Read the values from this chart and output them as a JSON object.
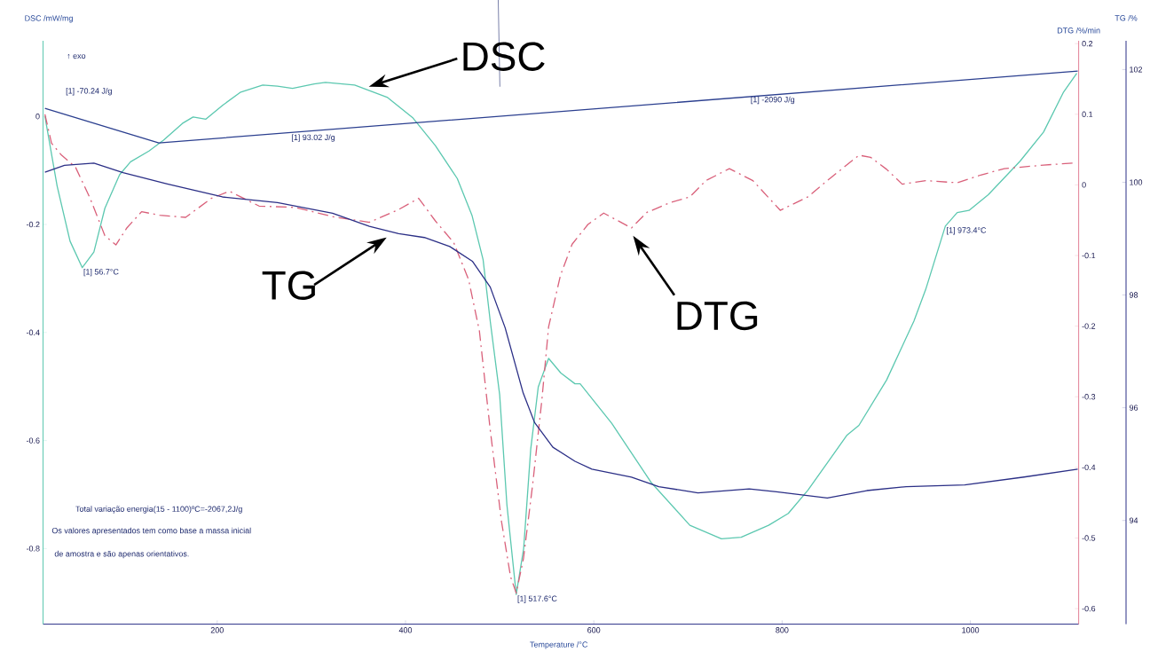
{
  "chart_data": {
    "type": "line",
    "xlabel": "Temperature /°C",
    "ylabel": "DSC /mW/mg",
    "y2label": "DTG /%/min",
    "y3label": "TG /%",
    "xlim": [
      15,
      1115
    ],
    "xticks": [
      200,
      400,
      600,
      800,
      1000
    ],
    "ylim": [
      -0.94,
      0.14
    ],
    "yticks": [
      -0.8,
      -0.6,
      -0.4,
      -0.2,
      0
    ],
    "y2lim": [
      -0.622,
      0.204
    ],
    "y2ticks": [
      -0.6,
      -0.5,
      -0.4,
      -0.3,
      -0.2,
      -0.1,
      0,
      0.1,
      0.2
    ],
    "y3lim": [
      92.16,
      102.51
    ],
    "y3ticks": [
      94,
      96,
      98,
      100,
      102
    ],
    "series": [
      {
        "name": "DSC",
        "color": "#5cc8b0",
        "axis": "y",
        "line_style": "solid",
        "x": [
          17,
          30,
          43.7,
          56.7,
          69,
          80.7,
          96.3,
          108,
          127.5,
          143,
          163,
          174.4,
          188,
          206,
          225,
          248.4,
          264,
          280,
          303,
          315,
          346,
          381,
          408,
          431.7,
          455,
          470.6,
          482.4,
          490,
          500,
          507.7,
          517.6,
          525.5,
          533,
          541,
          552,
          565,
          580,
          585.5,
          619,
          660.6,
          702,
          735.6,
          756.5,
          785.7,
          806.6,
          827.4,
          869,
          881.6,
          911,
          940,
          952.6,
          973.4,
          986,
          998.5,
          1019,
          1052.7,
          1077.7,
          1098.6,
          1113
        ],
        "values": [
          0,
          -0.129,
          -0.231,
          -0.28,
          -0.251,
          -0.17,
          -0.108,
          -0.084,
          -0.064,
          -0.044,
          -0.013,
          -0.001,
          -0.005,
          0.021,
          0.045,
          0.058,
          0.056,
          0.052,
          0.06,
          0.063,
          0.058,
          0.035,
          -0.003,
          -0.054,
          -0.115,
          -0.183,
          -0.265,
          -0.379,
          -0.515,
          -0.719,
          -0.885,
          -0.8,
          -0.616,
          -0.501,
          -0.448,
          -0.475,
          -0.495,
          -0.495,
          -0.568,
          -0.677,
          -0.757,
          -0.782,
          -0.779,
          -0.757,
          -0.735,
          -0.692,
          -0.59,
          -0.572,
          -0.488,
          -0.379,
          -0.32,
          -0.203,
          -0.178,
          -0.174,
          -0.145,
          -0.083,
          -0.029,
          0.044,
          0.08
        ]
      },
      {
        "name": "TG",
        "color": "#2b2f86",
        "axis": "y3",
        "line_style": "solid",
        "x": [
          17,
          37.8,
          69,
          100,
          147,
          205.5,
          264,
          322.5,
          361.6,
          392.7,
          420,
          447,
          471,
          490,
          505.8,
          525,
          537,
          556.5,
          580,
          598,
          640,
          669,
          710.6,
          765,
          794,
          848,
          890,
          931.8,
          994,
          1057,
          1114
        ],
        "values": [
          100.18,
          100.3,
          100.34,
          100.17,
          99.97,
          99.74,
          99.64,
          99.45,
          99.22,
          99.09,
          99.02,
          98.86,
          98.6,
          98.14,
          97.42,
          96.26,
          95.74,
          95.3,
          95.05,
          94.91,
          94.77,
          94.6,
          94.49,
          94.56,
          94.51,
          94.4,
          94.53,
          94.6,
          94.63,
          94.77,
          94.91
        ]
      },
      {
        "name": "DTG",
        "color": "#d9607a",
        "axis": "y2",
        "line_style": "dashed",
        "x": [
          17,
          24,
          34,
          49.5,
          65,
          80.7,
          92.4,
          104,
          119.7,
          139,
          166.5,
          193.8,
          213,
          244.5,
          283.5,
          322.5,
          361.6,
          392.7,
          414,
          431.7,
          451.3,
          467,
          478.5,
          490,
          502,
          511.6,
          517.6,
          525.3,
          535,
          544.8,
          552,
          564.6,
          577,
          593.8,
          610.5,
          640,
          656.4,
          681.4,
          702,
          719,
          744,
          769,
          798,
          827.4,
          852.5,
          881.6,
          894,
          911,
          927.6,
          952.6,
          986,
          1011,
          1036,
          1077.7,
          1111
        ],
        "values": [
          0.1,
          0.059,
          0.043,
          0.025,
          -0.019,
          -0.072,
          -0.085,
          -0.061,
          -0.038,
          -0.043,
          -0.046,
          -0.019,
          -0.009,
          -0.03,
          -0.032,
          -0.045,
          -0.053,
          -0.035,
          -0.019,
          -0.051,
          -0.082,
          -0.134,
          -0.207,
          -0.347,
          -0.477,
          -0.555,
          -0.578,
          -0.529,
          -0.425,
          -0.305,
          -0.201,
          -0.128,
          -0.084,
          -0.056,
          -0.04,
          -0.061,
          -0.039,
          -0.025,
          -0.017,
          0.006,
          0.023,
          0.006,
          -0.036,
          -0.017,
          0.011,
          0.042,
          0.039,
          0.022,
          0.001,
          0.006,
          0.003,
          0.014,
          0.023,
          0.028,
          0.031
        ]
      },
      {
        "color": "#2b3f8f",
        "axis": "y",
        "line_style": "solid",
        "x": [
          17,
          138,
          1114
        ],
        "values": [
          0.015,
          -0.049,
          0.084
        ]
      }
    ],
    "annotations": [
      "↑ exo",
      "[1] -70.24 J/g",
      "[1] 93.02 J/g",
      "[1] -2090 J/g",
      "Total variação energia(15 - 1100)ºC=-2067,2J/g",
      "Os valores apresentados tem como base a massa inicial",
      "de amostra e são apenas orientativos.",
      {
        "text": "[1] 56.7°C",
        "x": 56.7,
        "y": -0.28
      },
      {
        "text": "[1] 517.6°C",
        "x": 517.6,
        "y": -0.885
      },
      {
        "text": "[1] 973.4°C",
        "x": 973.4,
        "y": -0.203
      }
    ]
  }
}
